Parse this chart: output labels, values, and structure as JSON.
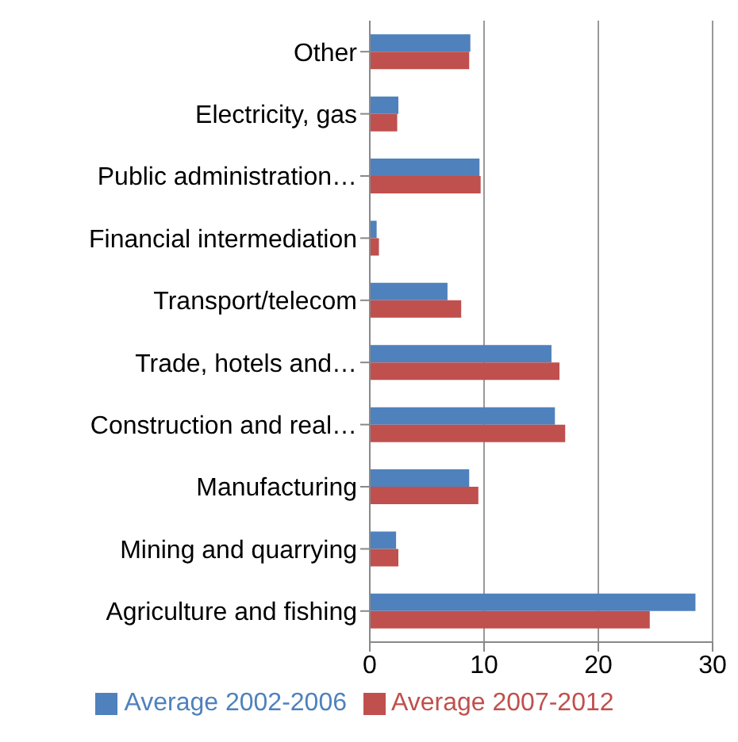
{
  "chart_data": {
    "type": "bar",
    "orientation": "horizontal",
    "categories": [
      "Other",
      "Electricity, gas",
      "Public administration…",
      "Financial intermediation",
      "Transport/telecom",
      "Trade, hotels and…",
      "Construction and real…",
      "Manufacturing",
      "Mining and quarrying",
      "Agriculture and fishing"
    ],
    "series": [
      {
        "name": "Average 2002-2006",
        "color": "#4f81bd",
        "values": [
          8.8,
          2.5,
          9.6,
          0.6,
          6.8,
          15.9,
          16.2,
          8.7,
          2.3,
          28.5
        ]
      },
      {
        "name": "Average 2007-2012",
        "color": "#c0504d",
        "values": [
          8.7,
          2.4,
          9.7,
          0.8,
          8.0,
          16.6,
          17.1,
          9.5,
          2.5,
          24.5
        ]
      }
    ],
    "xlim": [
      0,
      30
    ],
    "xticks": [
      0,
      10,
      20,
      30
    ],
    "grid": "x",
    "legend": "bottom"
  }
}
